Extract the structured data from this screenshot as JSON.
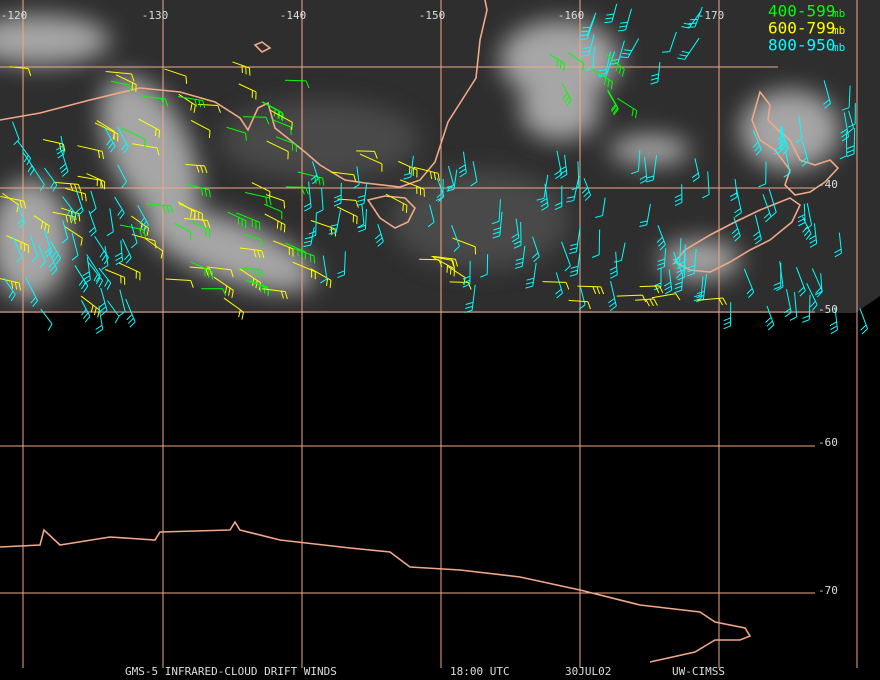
{
  "longitude_labels": [
    "-120",
    "-130",
    "-140",
    "-150",
    "-160",
    "-170"
  ],
  "latitude_labels": [
    "-40",
    "-50",
    "-60",
    "-70"
  ],
  "legend": [
    {
      "label": "400-599",
      "unit": "mb",
      "color": "#00ff00"
    },
    {
      "label": "600-799",
      "unit": "mb",
      "color": "#ffff00"
    },
    {
      "label": "800-950",
      "unit": "mb",
      "color": "#00ffff"
    }
  ],
  "footer": {
    "product": "GMS-5 INFRARED-CLOUD DRIFT WINDS",
    "time": "18:00 UTC",
    "date": "30JUL02",
    "source": "UW-CIMSS"
  }
}
